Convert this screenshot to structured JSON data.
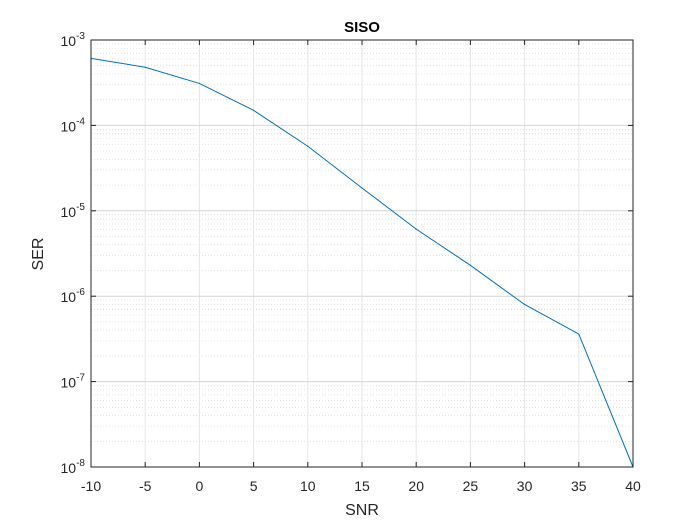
{
  "chart_data": {
    "type": "line",
    "title": "SISO",
    "xlabel": "SNR",
    "ylabel": "SER",
    "xlim": [
      -10,
      40
    ],
    "ylim": [
      1e-08,
      0.001
    ],
    "yscale": "log",
    "grid": true,
    "minor_grid": true,
    "x_ticks": [
      "-10",
      "-5",
      "0",
      "5",
      "10",
      "15",
      "20",
      "25",
      "30",
      "35",
      "40"
    ],
    "y_ticks": [
      {
        "base": "10",
        "exp": "-8",
        "value": 1e-08
      },
      {
        "base": "10",
        "exp": "-7",
        "value": 1e-07
      },
      {
        "base": "10",
        "exp": "-6",
        "value": 1e-06
      },
      {
        "base": "10",
        "exp": "-5",
        "value": 1e-05
      },
      {
        "base": "10",
        "exp": "-4",
        "value": 0.0001
      },
      {
        "base": "10",
        "exp": "-3",
        "value": 0.001
      }
    ],
    "series": [
      {
        "x": [
          -10,
          -5,
          0,
          5,
          10,
          15,
          20,
          25,
          30,
          35,
          40
        ],
        "values": [
          0.00061,
          0.00048,
          0.00031,
          0.00015,
          5.7e-05,
          1.85e-05,
          6.1e-06,
          2.3e-06,
          8e-07,
          3.6e-07,
          1e-08
        ],
        "color": "#0072BD"
      }
    ]
  }
}
